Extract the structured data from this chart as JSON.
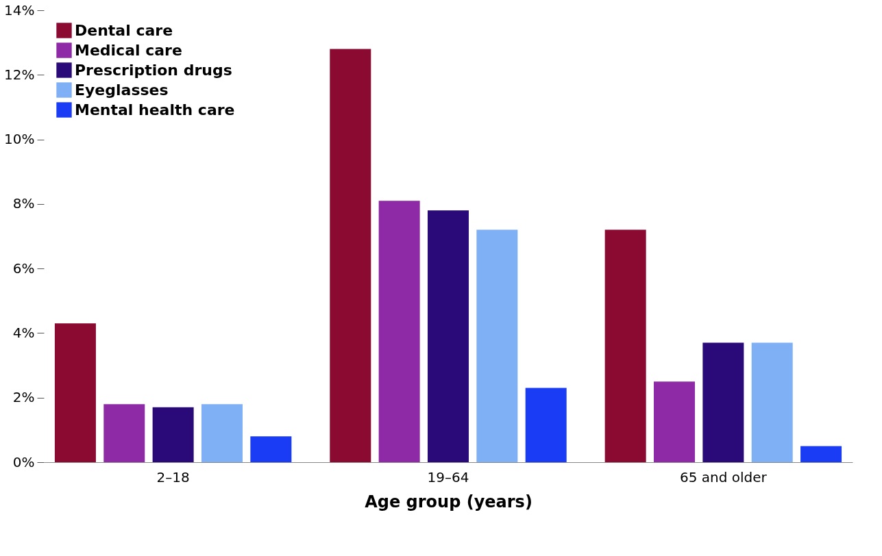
{
  "chart_data": {
    "type": "bar",
    "xlabel": "Age group (years)",
    "categories": [
      "2–18",
      "19–64",
      "65 and older"
    ],
    "series": [
      {
        "name": "Dental care",
        "color": "#8b0a32",
        "values": [
          4.3,
          12.8,
          7.2
        ]
      },
      {
        "name": "Medical care",
        "color": "#8e2aa5",
        "values": [
          1.8,
          8.1,
          2.5
        ]
      },
      {
        "name": "Prescription drugs",
        "color": "#2a0a78",
        "values": [
          1.7,
          7.8,
          3.7
        ]
      },
      {
        "name": "Eyeglasses",
        "color": "#7fb0f5",
        "values": [
          1.8,
          7.2,
          3.7
        ]
      },
      {
        "name": "Mental health care",
        "color": "#1a3cf5",
        "values": [
          0.8,
          2.3,
          0.5
        ]
      }
    ],
    "ylim": [
      0,
      14
    ],
    "yticks": [
      {
        "value": 0,
        "label": "0%"
      },
      {
        "value": 2,
        "label": "2%"
      },
      {
        "value": 4,
        "label": "4%"
      },
      {
        "value": 6,
        "label": "6%"
      },
      {
        "value": 8,
        "label": "8%"
      },
      {
        "value": 10,
        "label": "10%"
      },
      {
        "value": 12,
        "label": "12%"
      },
      {
        "value": 14,
        "label": "14%"
      }
    ],
    "grid": false,
    "legend": "top left"
  }
}
